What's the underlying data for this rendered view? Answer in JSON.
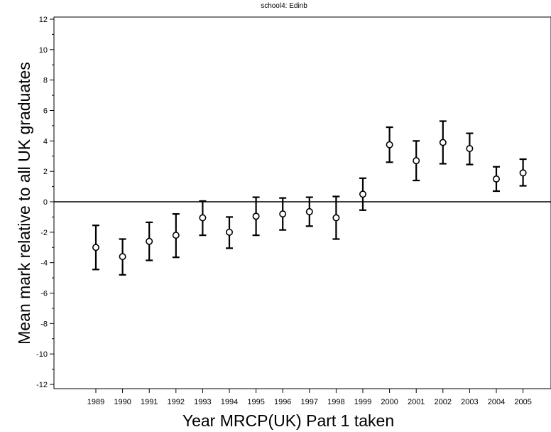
{
  "chart_data": {
    "type": "scatter",
    "subtitle": "school4: Edinb",
    "xlabel": "Year MRCP(UK) Part 1 taken",
    "ylabel": "Mean mark relative to all UK graduates",
    "ylim": [
      -12,
      12
    ],
    "yticks": [
      -12,
      -10,
      -8,
      -6,
      -4,
      -2,
      0,
      2,
      4,
      6,
      8,
      10,
      12
    ],
    "reference_line_y": 0,
    "grid": false,
    "categories": [
      "1989",
      "1990",
      "1991",
      "1992",
      "1993",
      "1994",
      "1995",
      "1996",
      "1997",
      "1998",
      "1999",
      "2000",
      "2001",
      "2002",
      "2003",
      "2004",
      "2005"
    ],
    "series": [
      {
        "mean": [
          -3.0,
          -3.6,
          -2.6,
          -2.2,
          -1.05,
          -2.0,
          -0.95,
          -0.8,
          -0.65,
          -1.05,
          0.5,
          3.75,
          2.7,
          3.9,
          3.5,
          1.5,
          1.9
        ],
        "lower": [
          -4.45,
          -4.8,
          -3.85,
          -3.65,
          -2.2,
          -3.05,
          -2.2,
          -1.85,
          -1.6,
          -2.45,
          -0.55,
          2.6,
          1.4,
          2.5,
          2.45,
          0.7,
          1.05
        ],
        "upper": [
          -1.55,
          -2.45,
          -1.35,
          -0.8,
          0.05,
          -1.0,
          0.3,
          0.25,
          0.3,
          0.35,
          1.55,
          4.9,
          4.0,
          5.3,
          4.5,
          2.3,
          2.8
        ]
      }
    ]
  }
}
